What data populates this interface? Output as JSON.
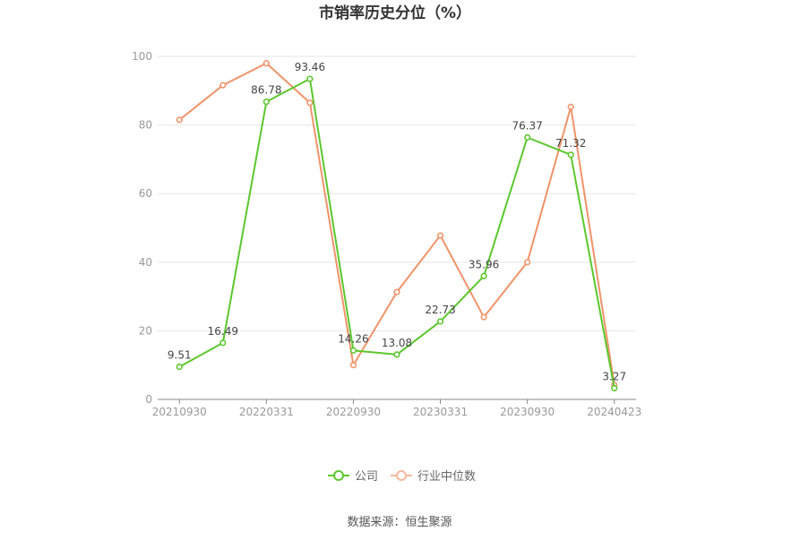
{
  "chart_data": {
    "type": "line",
    "title": "市销率历史分位（%）",
    "x": [
      "20210930",
      "20211231",
      "20220331",
      "20220630",
      "20220930",
      "20221231",
      "20230331",
      "20230630",
      "20230930",
      "20231231",
      "20240423"
    ],
    "x_tick_labels": [
      "20210930",
      "20220331",
      "20220930",
      "20230331",
      "20230930",
      "20240423"
    ],
    "y_ticks": [
      "0",
      "20",
      "40",
      "60",
      "80",
      "100"
    ],
    "ylim": [
      0,
      100
    ],
    "grid": true,
    "legend_position": "bottom-center",
    "series": [
      {
        "name": "公司",
        "color": "#5cc72d",
        "values": [
          9.51,
          16.49,
          86.78,
          93.46,
          14.26,
          13.08,
          22.73,
          35.96,
          76.37,
          71.32,
          3.27
        ],
        "labels": [
          "9.51",
          "16.49",
          "86.78",
          "93.46",
          "14.26",
          "13.08",
          "22.73",
          "35.96",
          "76.37",
          "71.32",
          "3.27"
        ]
      },
      {
        "name": "行业中位数",
        "color": "#f0936a",
        "values": [
          81.5,
          91.6,
          98.0,
          86.5,
          10.0,
          31.3,
          47.8,
          24.0,
          40.0,
          85.3,
          4.2
        ]
      }
    ]
  },
  "source_text": "数据来源：恒生聚源"
}
